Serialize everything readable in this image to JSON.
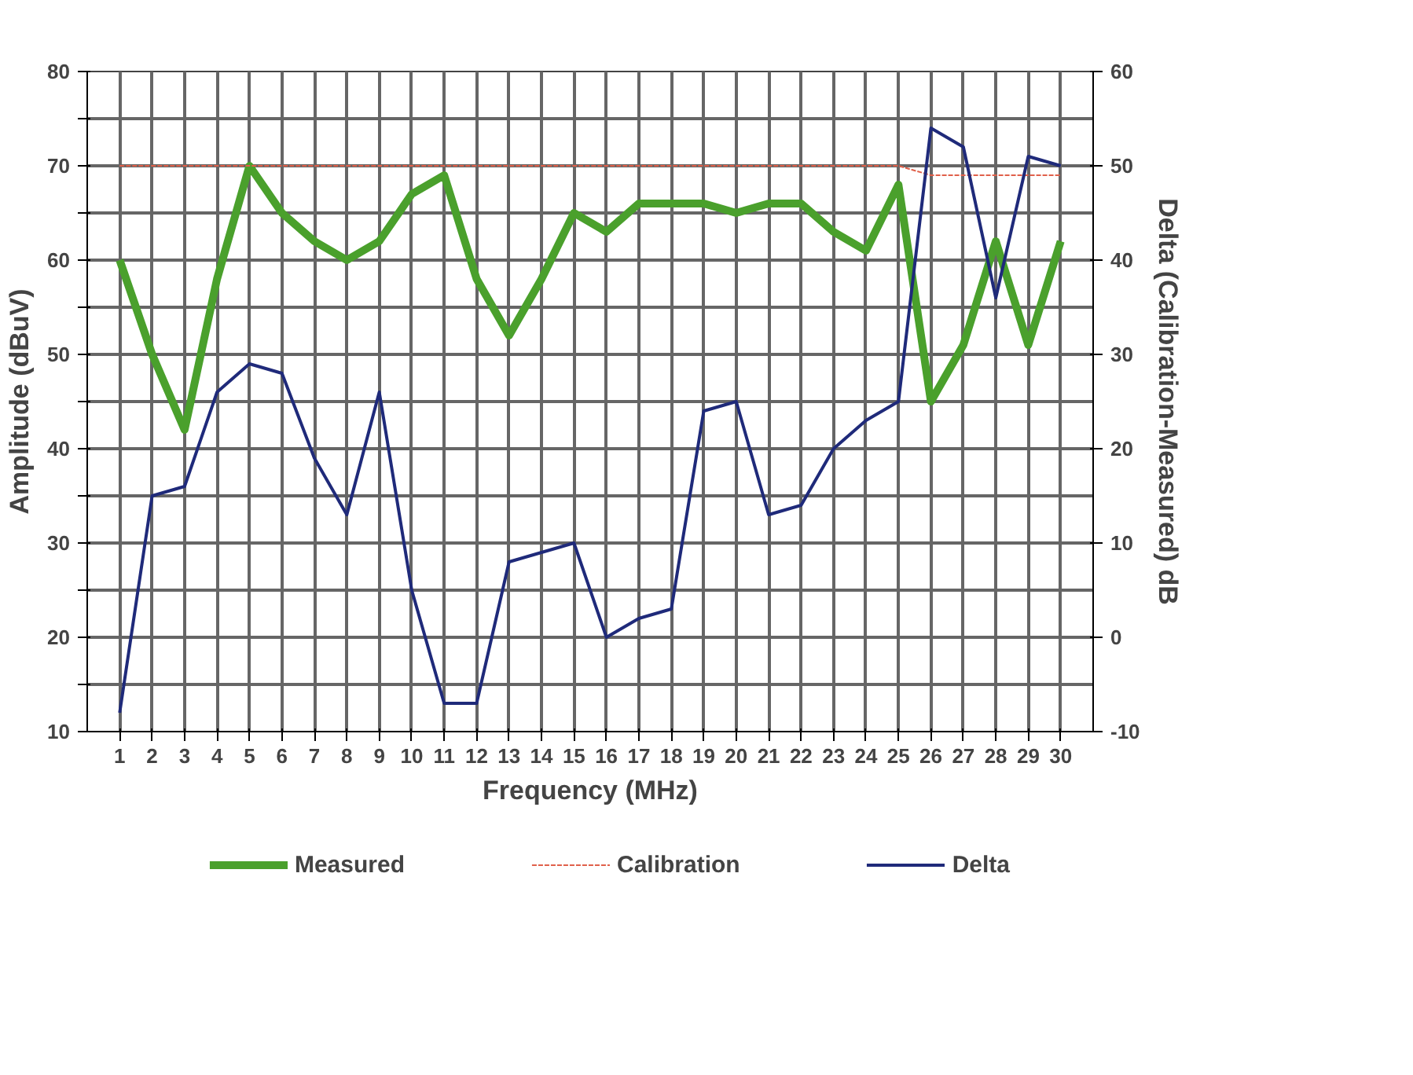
{
  "chart_data": {
    "type": "line",
    "xlabel": "Frequency (MHz)",
    "ylabel": "Amplitude (dBuV)",
    "y2label": "Delta (Calibration-Measured) dB",
    "x": [
      1,
      2,
      3,
      4,
      5,
      6,
      7,
      8,
      9,
      10,
      11,
      12,
      13,
      14,
      15,
      16,
      17,
      18,
      19,
      20,
      21,
      22,
      23,
      24,
      25,
      26,
      27,
      28,
      29,
      30
    ],
    "series": [
      {
        "name": "Measured",
        "color": "#4aa02c",
        "line_style": "solid",
        "values": [
          60,
          50,
          42,
          58,
          70,
          65,
          62,
          60,
          62,
          67,
          69,
          58,
          52,
          58,
          65,
          63,
          66,
          66,
          66,
          65,
          66,
          66,
          63,
          61,
          68,
          45,
          51,
          62,
          51,
          62
        ]
      },
      {
        "name": "Calibration",
        "color": "#e0604a",
        "line_style": "dotted",
        "values": [
          70,
          70,
          70,
          70,
          70,
          70,
          70,
          70,
          70,
          70,
          70,
          70,
          70,
          70,
          70,
          70,
          70,
          70,
          70,
          70,
          70,
          70,
          70,
          70,
          70,
          69,
          69,
          69,
          69,
          69
        ]
      },
      {
        "name": "Delta",
        "color": "#1f2a7a",
        "line_style": "solid",
        "axis": "y2",
        "values": [
          -8,
          15,
          16,
          26,
          29,
          28,
          19,
          13,
          26,
          5,
          -7,
          -7,
          8,
          9,
          10,
          0,
          2,
          3,
          24,
          25,
          13,
          14,
          20,
          23,
          25,
          54,
          52,
          36,
          51,
          50
        ]
      }
    ],
    "xlim": [
      0,
      31
    ],
    "xticks": [
      1,
      2,
      3,
      4,
      5,
      6,
      7,
      8,
      9,
      10,
      11,
      12,
      13,
      14,
      15,
      16,
      17,
      18,
      19,
      20,
      21,
      22,
      23,
      24,
      25,
      26,
      27,
      28,
      29,
      30
    ],
    "ylim": [
      10,
      80
    ],
    "yticks": [
      10,
      {
        "value": 15,
        "label": null
      },
      20,
      {
        "value": 25,
        "label": null
      },
      30,
      {
        "value": 35,
        "label": null
      },
      40,
      {
        "value": 45,
        "label": null
      },
      50,
      {
        "value": 55,
        "label": null
      },
      60,
      {
        "value": 65,
        "label": null
      },
      70,
      {
        "value": 75,
        "label": null
      },
      80
    ],
    "y2lim": [
      -10,
      60
    ],
    "y2ticks": [
      -10,
      0,
      10,
      20,
      30,
      40,
      50,
      60
    ],
    "grid": true,
    "legend": "bottom",
    "marker": "none"
  }
}
